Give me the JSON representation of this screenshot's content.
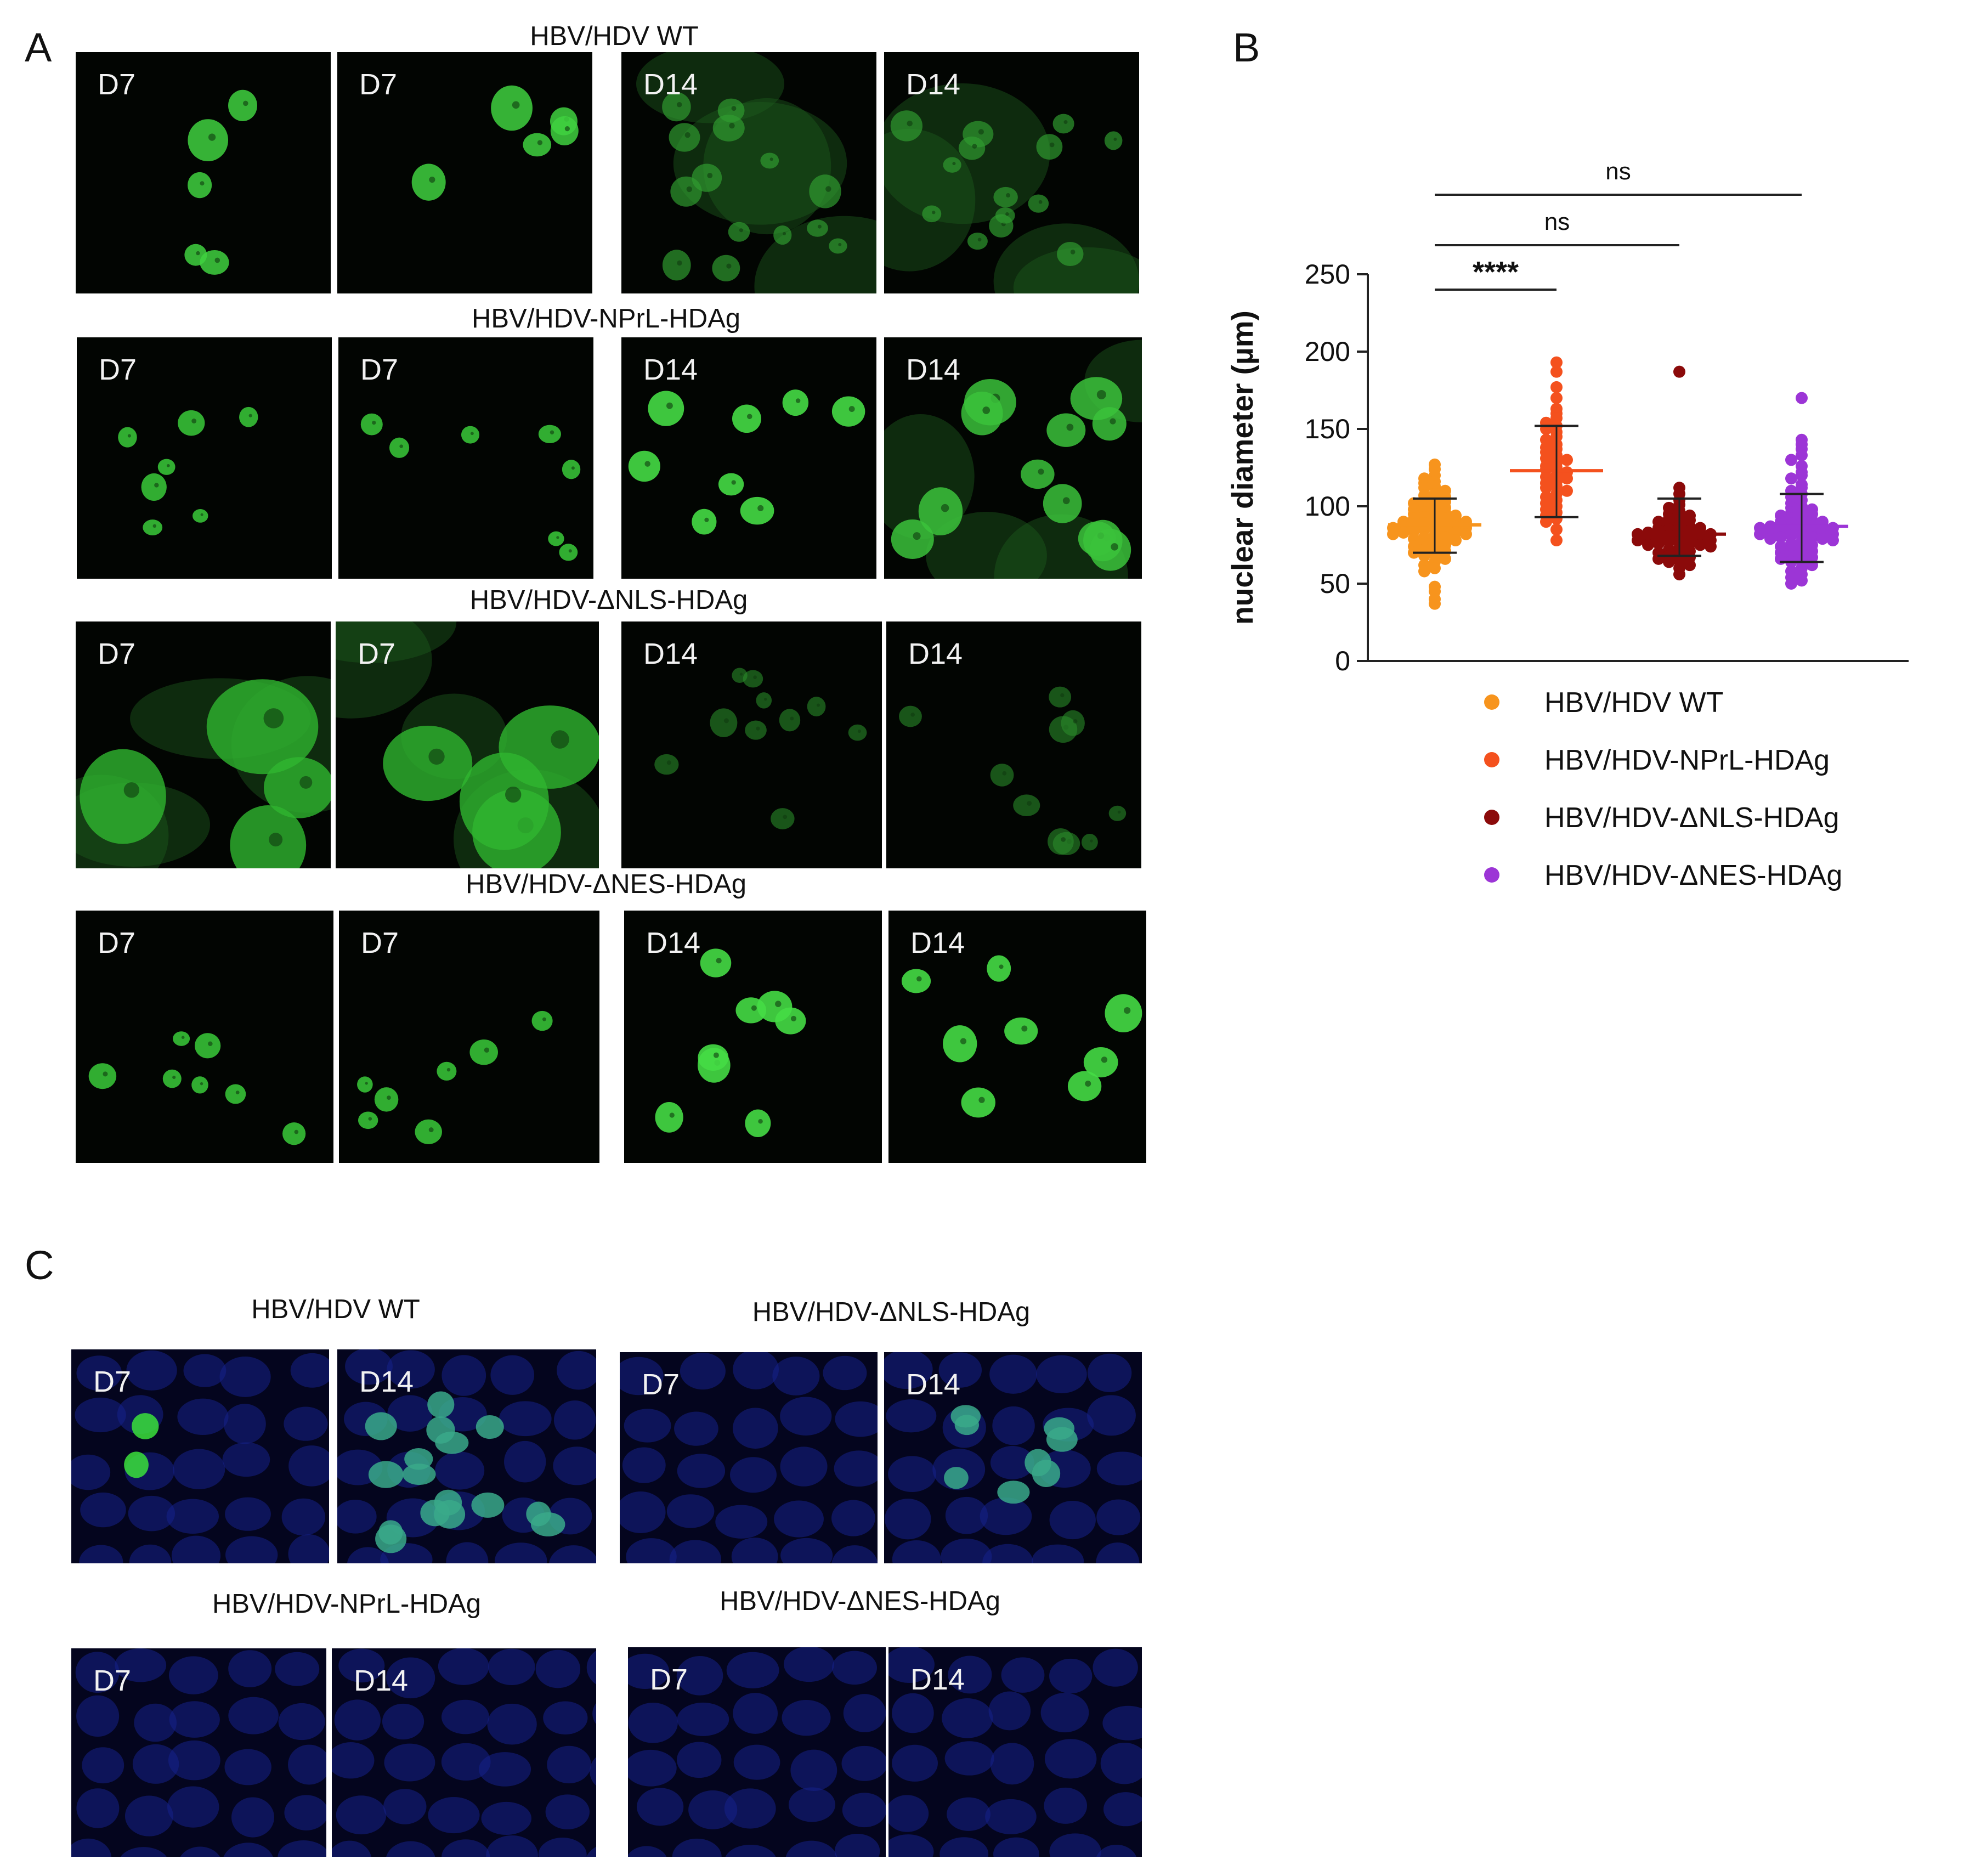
{
  "panel_labels": {
    "a": "A",
    "b": "B",
    "c": "C"
  },
  "panel_a": {
    "rows": [
      {
        "title": "HBV/HDV WT",
        "days": [
          "D7",
          "D7",
          "D14",
          "D14"
        ]
      },
      {
        "title": "HBV/HDV-NPrL-HDAg",
        "days": [
          "D7",
          "D7",
          "D14",
          "D14"
        ]
      },
      {
        "title": "HBV/HDV-ΔNLS-HDAg",
        "days": [
          "D7",
          "D7",
          "D14",
          "D14"
        ]
      },
      {
        "title": "HBV/HDV-ΔNES-HDAg",
        "days": [
          "D7",
          "D7",
          "D14",
          "D14"
        ]
      }
    ]
  },
  "panel_c": {
    "groups": [
      {
        "title": "HBV/HDV WT",
        "days": [
          "D7",
          "D14"
        ]
      },
      {
        "title": "HBV/HDV-ΔNLS-HDAg",
        "days": [
          "D7",
          "D14"
        ]
      },
      {
        "title": "HBV/HDV-NPrL-HDAg",
        "days": [
          "D7",
          "D14"
        ]
      },
      {
        "title": "HBV/HDV-ΔNES-HDAg",
        "days": [
          "D7",
          "D14"
        ]
      }
    ]
  },
  "chart_data": {
    "type": "scatter",
    "title": "",
    "xlabel": "",
    "ylabel": "nuclear diameter (µm)",
    "ylim": [
      0,
      250
    ],
    "yticks": [
      0,
      50,
      100,
      150,
      200,
      250
    ],
    "legend_position": "bottom",
    "series": [
      {
        "name": "HBV/HDV WT",
        "color": "#f7941d",
        "mean": 88,
        "sd_low": 70,
        "sd_high": 105,
        "values": [
          127,
          124,
          120,
          118,
          116,
          115,
          113,
          112,
          110,
          108,
          107,
          106,
          105,
          104,
          103,
          102,
          101,
          100,
          99,
          98,
          97,
          96,
          96,
          95,
          94,
          93,
          93,
          92,
          92,
          91,
          90,
          90,
          89,
          89,
          88,
          88,
          87,
          87,
          86,
          86,
          85,
          85,
          84,
          84,
          83,
          83,
          82,
          82,
          81,
          80,
          80,
          79,
          78,
          77,
          76,
          75,
          74,
          73,
          72,
          71,
          70,
          69,
          68,
          66,
          64,
          62,
          60,
          58,
          48,
          45,
          40,
          37
        ]
      },
      {
        "name": "HBV/HDV-NPrL-HDAg",
        "color": "#f4511e",
        "mean": 123,
        "sd_low": 93,
        "sd_high": 152,
        "values": [
          193,
          187,
          177,
          170,
          163,
          160,
          157,
          154,
          152,
          150,
          148,
          145,
          143,
          140,
          138,
          137,
          135,
          133,
          131,
          130,
          128,
          126,
          125,
          124,
          122,
          120,
          119,
          118,
          116,
          115,
          113,
          112,
          110,
          108,
          106,
          104,
          102,
          100,
          98,
          96,
          94,
          92,
          90,
          85,
          78
        ]
      },
      {
        "name": "HBV/HDV-ΔNLS-HDAg",
        "color": "#8b0a0a",
        "mean": 82,
        "sd_low": 68,
        "sd_high": 105,
        "values": [
          187,
          112,
          108,
          104,
          101,
          99,
          97,
          95,
          94,
          93,
          92,
          91,
          90,
          89,
          88,
          87,
          86,
          86,
          85,
          85,
          84,
          84,
          83,
          83,
          82,
          82,
          81,
          81,
          80,
          80,
          79,
          79,
          78,
          78,
          77,
          77,
          76,
          76,
          75,
          75,
          74,
          73,
          72,
          71,
          70,
          69,
          68,
          67,
          66,
          65,
          64,
          62,
          60,
          56
        ]
      },
      {
        "name": "HBV/HDV-ΔNES-HDAg",
        "color": "#9c35d6",
        "mean": 87,
        "sd_low": 64,
        "sd_high": 108,
        "values": [
          170,
          143,
          140,
          137,
          133,
          130,
          126,
          122,
          120,
          118,
          114,
          112,
          110,
          108,
          106,
          104,
          102,
          100,
          99,
          98,
          97,
          96,
          95,
          94,
          93,
          92,
          91,
          90,
          90,
          89,
          89,
          88,
          88,
          87,
          87,
          86,
          86,
          85,
          85,
          84,
          84,
          83,
          83,
          82,
          82,
          81,
          81,
          80,
          80,
          79,
          79,
          78,
          77,
          76,
          75,
          74,
          73,
          72,
          71,
          70,
          69,
          68,
          67,
          66,
          65,
          64,
          62,
          60,
          58,
          56,
          54,
          52,
          50
        ]
      }
    ],
    "annotations": [
      {
        "text": "****",
        "from": 0,
        "to": 1
      },
      {
        "text": "ns",
        "from": 0,
        "to": 2
      },
      {
        "text": "ns",
        "from": 0,
        "to": 3
      }
    ]
  }
}
